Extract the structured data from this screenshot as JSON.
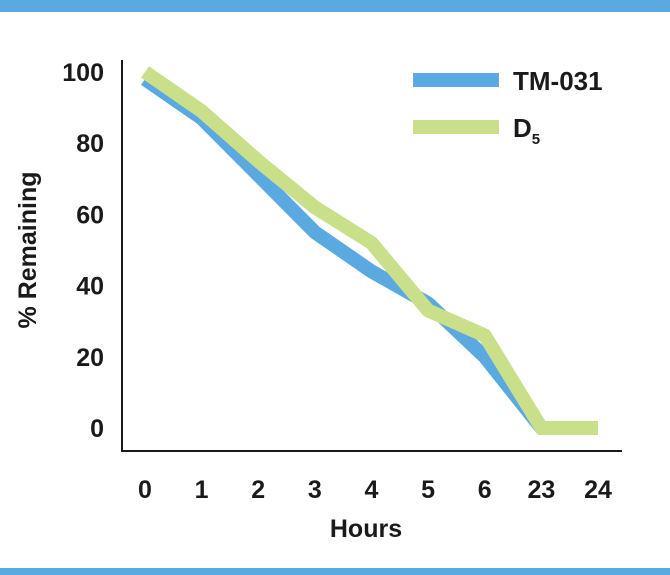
{
  "colors": {
    "band": "#5aa9e0",
    "series": [
      "#5aa9e0",
      "#c9df8a"
    ],
    "axis": "#1a1a1a"
  },
  "chart_data": {
    "type": "line",
    "title": "",
    "xlabel": "Hours",
    "ylabel": "% Remaining",
    "x": [
      "0",
      "1",
      "2",
      "3",
      "4",
      "5",
      "6",
      "23",
      "24"
    ],
    "yticks": [
      "100",
      "80",
      "60",
      "40",
      "20",
      "0"
    ],
    "ylim": [
      0,
      100
    ],
    "grid": false,
    "legend_position": "top-right",
    "series": [
      {
        "name": "TM-031",
        "color": "#5aa9e0",
        "values": [
          98,
          87,
          71,
          55,
          44,
          35,
          20,
          0,
          0
        ]
      },
      {
        "name": "D5",
        "name_main": "D",
        "name_sub": "5",
        "color": "#c9df8a",
        "values": [
          100,
          89,
          75,
          62,
          52,
          33,
          26,
          0,
          0
        ]
      }
    ]
  }
}
